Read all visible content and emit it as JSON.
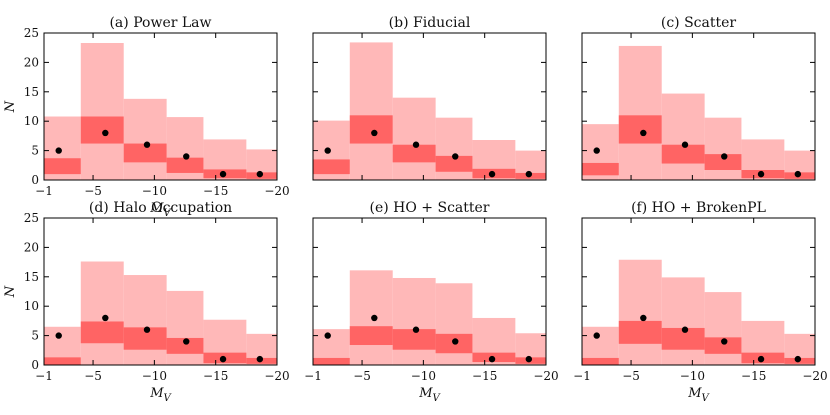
{
  "chart_data": [
    {
      "type": "bar",
      "panel": "a",
      "title": "(a) Power Law",
      "xlabel": "M_V",
      "ylabel": "N",
      "xlim": [
        -1,
        -20
      ],
      "ylim": [
        0,
        25
      ],
      "xticks": [
        -1,
        -5,
        -10,
        -15,
        -20
      ],
      "yticks": [
        0,
        5,
        10,
        15,
        20,
        25
      ],
      "bin_edges": [
        -1,
        -4,
        -7.5,
        -11,
        -14,
        -17.5,
        -20
      ],
      "band_95": [
        [
          0,
          10.8
        ],
        [
          0,
          23.3
        ],
        [
          0,
          13.8
        ],
        [
          0,
          10.7
        ],
        [
          0,
          6.9
        ],
        [
          0,
          5.2
        ]
      ],
      "band_68": [
        [
          1.0,
          3.7
        ],
        [
          6.2,
          10.8
        ],
        [
          3.0,
          6.2
        ],
        [
          1.2,
          3.8
        ],
        [
          0.3,
          1.8
        ],
        [
          0.2,
          1.3
        ]
      ],
      "observed": {
        "x": [
          -2.2,
          -6.0,
          -9.4,
          -12.6,
          -15.6,
          -18.6
        ],
        "y": [
          5,
          8,
          6,
          4,
          1,
          1
        ]
      }
    },
    {
      "type": "bar",
      "panel": "b",
      "title": "(b) Fiducial",
      "xlabel": "",
      "ylabel": "",
      "xlim": [
        -1,
        -20
      ],
      "ylim": [
        0,
        25
      ],
      "xticks": [
        -1,
        -5,
        -10,
        -15,
        -20
      ],
      "yticks": [
        0,
        5,
        10,
        15,
        20,
        25
      ],
      "bin_edges": [
        -1,
        -4,
        -7.5,
        -11,
        -14,
        -17.5,
        -20
      ],
      "band_95": [
        [
          0,
          10.1
        ],
        [
          0,
          23.4
        ],
        [
          0,
          14.0
        ],
        [
          0,
          10.6
        ],
        [
          0,
          6.8
        ],
        [
          0,
          5.0
        ]
      ],
      "band_68": [
        [
          1.0,
          3.5
        ],
        [
          6.2,
          11.0
        ],
        [
          3.0,
          6.0
        ],
        [
          1.4,
          4.1
        ],
        [
          0.3,
          1.9
        ],
        [
          0.2,
          1.2
        ]
      ],
      "observed": {
        "x": [
          -2.2,
          -6.0,
          -9.4,
          -12.6,
          -15.6,
          -18.6
        ],
        "y": [
          5,
          8,
          6,
          4,
          1,
          1
        ]
      }
    },
    {
      "type": "bar",
      "panel": "c",
      "title": "(c) Scatter",
      "xlabel": "",
      "ylabel": "",
      "xlim": [
        -1,
        -20
      ],
      "ylim": [
        0,
        25
      ],
      "xticks": [
        -1,
        -5,
        -10,
        -15,
        -20
      ],
      "yticks": [
        0,
        5,
        10,
        15,
        20,
        25
      ],
      "bin_edges": [
        -1,
        -4,
        -7.5,
        -11,
        -14,
        -17.5,
        -20
      ],
      "band_95": [
        [
          0,
          9.5
        ],
        [
          0,
          22.8
        ],
        [
          0,
          14.7
        ],
        [
          0,
          10.6
        ],
        [
          0,
          6.9
        ],
        [
          0,
          5.0
        ]
      ],
      "band_68": [
        [
          0.8,
          2.9
        ],
        [
          6.2,
          11.0
        ],
        [
          2.8,
          6.0
        ],
        [
          1.7,
          4.4
        ],
        [
          0.3,
          1.7
        ],
        [
          0.2,
          1.3
        ]
      ],
      "observed": {
        "x": [
          -2.2,
          -6.0,
          -9.4,
          -12.6,
          -15.6,
          -18.6
        ],
        "y": [
          5,
          8,
          6,
          4,
          1,
          1
        ]
      }
    },
    {
      "type": "bar",
      "panel": "d",
      "title": "(d) Halo Occupation",
      "xlabel": "M_V",
      "ylabel": "N",
      "xlim": [
        -1,
        -20
      ],
      "ylim": [
        0,
        25
      ],
      "xticks": [
        -1,
        -5,
        -10,
        -15,
        -20
      ],
      "yticks": [
        0,
        5,
        10,
        15,
        20,
        25
      ],
      "bin_edges": [
        -1,
        -4,
        -7.5,
        -11,
        -14,
        -17.5,
        -20
      ],
      "band_95": [
        [
          0,
          6.5
        ],
        [
          0,
          17.6
        ],
        [
          0,
          15.3
        ],
        [
          0,
          12.6
        ],
        [
          0,
          7.7
        ],
        [
          0,
          5.3
        ]
      ],
      "band_68": [
        [
          0,
          1.3
        ],
        [
          3.7,
          7.4
        ],
        [
          2.6,
          6.4
        ],
        [
          1.9,
          4.6
        ],
        [
          0.3,
          2.1
        ],
        [
          0.2,
          1.2
        ]
      ],
      "observed": {
        "x": [
          -2.2,
          -6.0,
          -9.4,
          -12.6,
          -15.6,
          -18.6
        ],
        "y": [
          5,
          8,
          6,
          4,
          1,
          1
        ]
      }
    },
    {
      "type": "bar",
      "panel": "e",
      "title": "(e) HO + Scatter",
      "xlabel": "M_V",
      "ylabel": "",
      "xlim": [
        -1,
        -20
      ],
      "ylim": [
        0,
        25
      ],
      "xticks": [
        -1,
        -5,
        -10,
        -15,
        -20
      ],
      "yticks": [
        0,
        5,
        10,
        15,
        20,
        25
      ],
      "bin_edges": [
        -1,
        -4,
        -7.5,
        -11,
        -14,
        -17.5,
        -20
      ],
      "band_95": [
        [
          0,
          6.1
        ],
        [
          0,
          16.1
        ],
        [
          0,
          14.8
        ],
        [
          0,
          13.9
        ],
        [
          0,
          8.0
        ],
        [
          0,
          5.4
        ]
      ],
      "band_68": [
        [
          0,
          1.2
        ],
        [
          3.4,
          6.6
        ],
        [
          2.6,
          6.1
        ],
        [
          2.0,
          5.3
        ],
        [
          0.5,
          2.1
        ],
        [
          0.2,
          1.3
        ]
      ],
      "observed": {
        "x": [
          -2.2,
          -6.0,
          -9.4,
          -12.6,
          -15.6,
          -18.6
        ],
        "y": [
          5,
          8,
          6,
          4,
          1,
          1
        ]
      }
    },
    {
      "type": "bar",
      "panel": "f",
      "title": "(f) HO + BrokenPL",
      "xlabel": "M_V",
      "ylabel": "",
      "xlim": [
        -1,
        -20
      ],
      "ylim": [
        0,
        25
      ],
      "xticks": [
        -1,
        -5,
        -10,
        -15,
        -20
      ],
      "yticks": [
        0,
        5,
        10,
        15,
        20,
        25
      ],
      "bin_edges": [
        -1,
        -4,
        -7.5,
        -11,
        -14,
        -17.5,
        -20
      ],
      "band_95": [
        [
          0,
          6.5
        ],
        [
          0,
          17.9
        ],
        [
          0,
          14.9
        ],
        [
          0,
          12.4
        ],
        [
          0,
          7.5
        ],
        [
          0,
          5.3
        ]
      ],
      "band_68": [
        [
          0,
          1.2
        ],
        [
          3.6,
          7.5
        ],
        [
          2.6,
          6.3
        ],
        [
          1.9,
          4.7
        ],
        [
          0.3,
          2.1
        ],
        [
          0.2,
          1.2
        ]
      ],
      "observed": {
        "x": [
          -2.2,
          -6.0,
          -9.4,
          -12.6,
          -15.6,
          -18.6
        ],
        "y": [
          5,
          8,
          6,
          4,
          1,
          1
        ]
      }
    }
  ],
  "colors": {
    "band_95": "#ffb8b8",
    "band_68": "#ff6464",
    "observed": "#000000",
    "axis": "#000000"
  }
}
